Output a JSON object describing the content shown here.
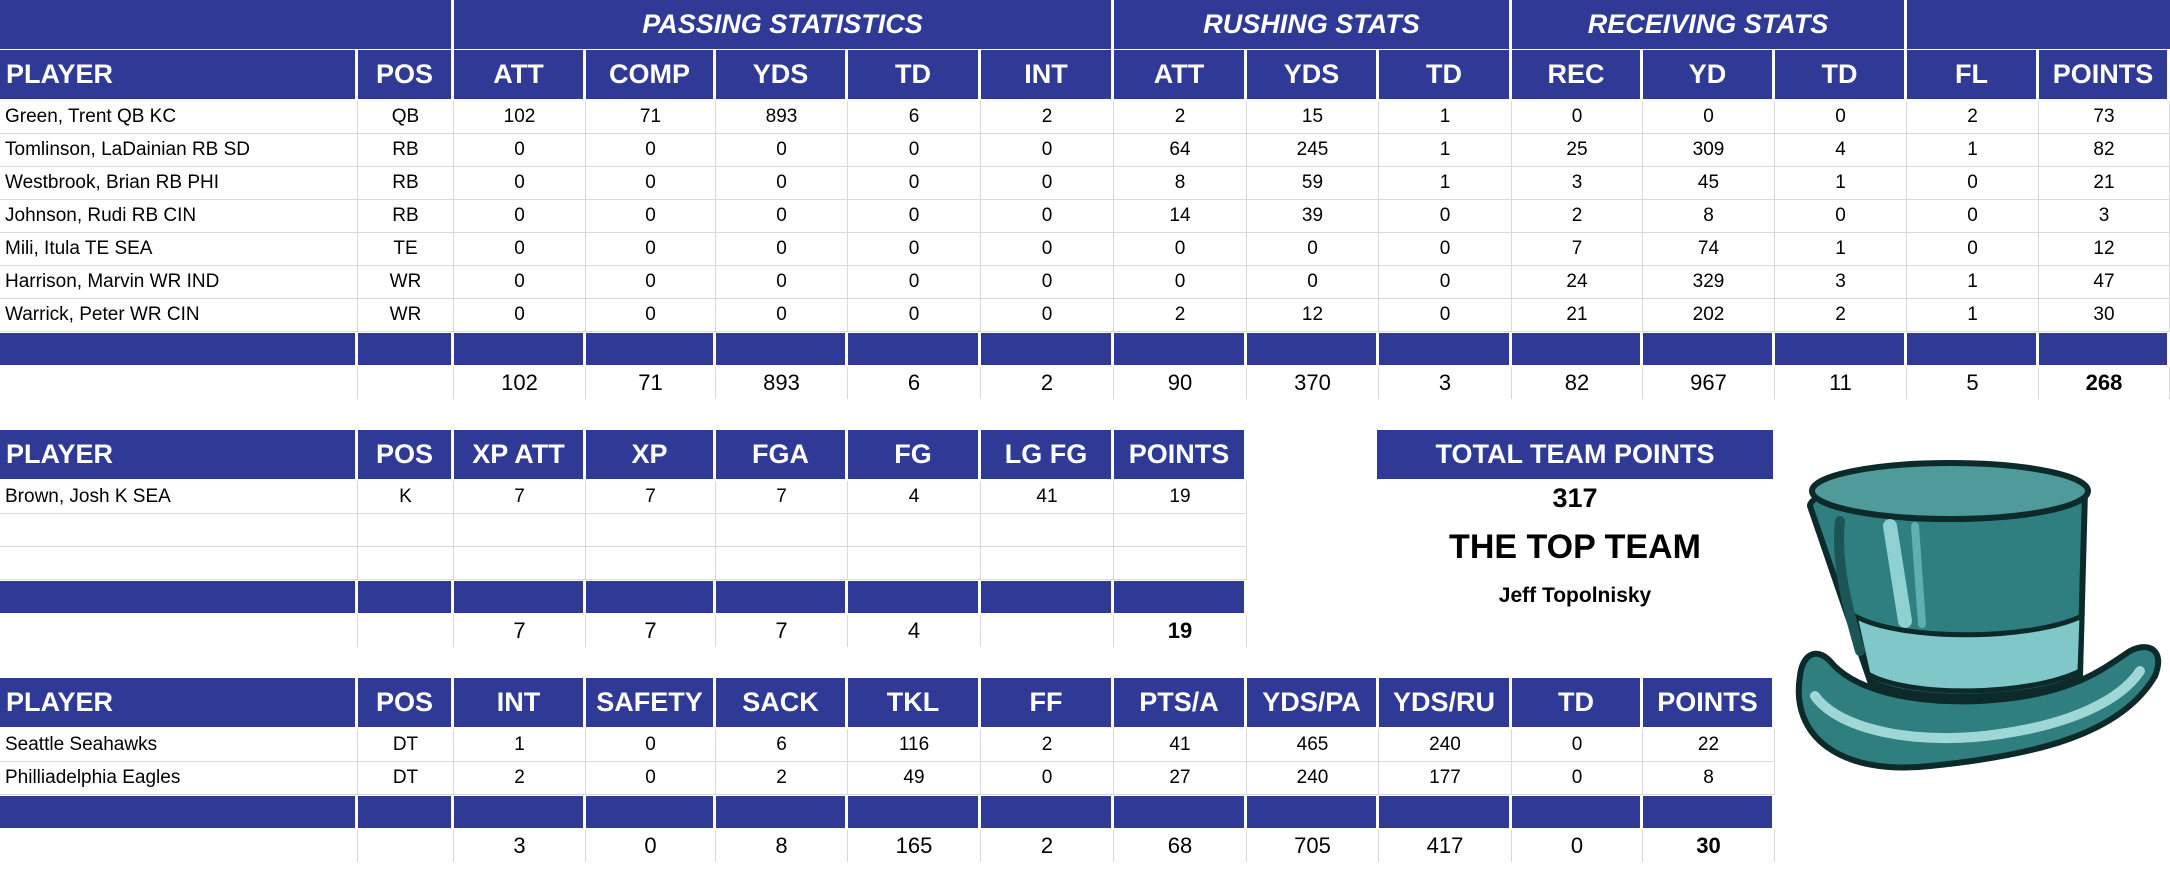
{
  "colors": {
    "header_bg": "#2e3a96",
    "header_text": "#ffffff",
    "hat_main": "#2f7f80",
    "hat_light": "#7fc7c8"
  },
  "offense": {
    "group_headers": [
      "PASSING STATISTICS",
      "RUSHING STATS",
      "RECEIVING STATS"
    ],
    "columns": [
      "PLAYER",
      "POS",
      "ATT",
      "COMP",
      "YDS",
      "TD",
      "INT",
      "ATT",
      "YDS",
      "TD",
      "REC",
      "YD",
      "TD",
      "FL",
      "POINTS"
    ],
    "rows": [
      [
        "Green, Trent QB KC",
        "QB",
        "102",
        "71",
        "893",
        "6",
        "2",
        "2",
        "15",
        "1",
        "0",
        "0",
        "0",
        "2",
        "73"
      ],
      [
        "Tomlinson, LaDainian RB SD",
        "RB",
        "0",
        "0",
        "0",
        "0",
        "0",
        "64",
        "245",
        "1",
        "25",
        "309",
        "4",
        "1",
        "82"
      ],
      [
        "Westbrook, Brian RB PHI",
        "RB",
        "0",
        "0",
        "0",
        "0",
        "0",
        "8",
        "59",
        "1",
        "3",
        "45",
        "1",
        "0",
        "21"
      ],
      [
        "Johnson, Rudi RB CIN",
        "RB",
        "0",
        "0",
        "0",
        "0",
        "0",
        "14",
        "39",
        "0",
        "2",
        "8",
        "0",
        "0",
        "3"
      ],
      [
        "Mili, Itula TE SEA",
        "TE",
        "0",
        "0",
        "0",
        "0",
        "0",
        "0",
        "0",
        "0",
        "7",
        "74",
        "1",
        "0",
        "12"
      ],
      [
        "Harrison, Marvin WR IND",
        "WR",
        "0",
        "0",
        "0",
        "0",
        "0",
        "0",
        "0",
        "0",
        "24",
        "329",
        "3",
        "1",
        "47"
      ],
      [
        "Warrick, Peter WR CIN",
        "WR",
        "0",
        "0",
        "0",
        "0",
        "0",
        "2",
        "12",
        "0",
        "21",
        "202",
        "2",
        "1",
        "30"
      ]
    ],
    "totals": [
      "",
      "",
      "102",
      "71",
      "893",
      "6",
      "2",
      "90",
      "370",
      "3",
      "82",
      "967",
      "11",
      "5",
      "268"
    ]
  },
  "kicker": {
    "columns": [
      "PLAYER",
      "POS",
      "XP ATT",
      "XP",
      "FGA",
      "FG",
      "LG FG",
      "POINTS"
    ],
    "rows": [
      [
        "Brown, Josh K SEA",
        "K",
        "7",
        "7",
        "7",
        "4",
        "41",
        "19"
      ],
      [
        "",
        "",
        "",
        "",
        "",
        "",
        "",
        ""
      ],
      [
        "",
        "",
        "",
        "",
        "",
        "",
        "",
        ""
      ]
    ],
    "totals": [
      "",
      "",
      "7",
      "7",
      "7",
      "4",
      "",
      "19"
    ]
  },
  "defense": {
    "columns": [
      "PLAYER",
      "POS",
      "INT",
      "SAFETY",
      "SACK",
      "TKL",
      "FF",
      "PTS/A",
      "YDS/PA",
      "YDS/RU",
      "TD",
      "POINTS"
    ],
    "rows": [
      [
        "Seattle Seahawks",
        "DT",
        "1",
        "0",
        "6",
        "116",
        "2",
        "41",
        "465",
        "240",
        "0",
        "22"
      ],
      [
        "Philliadelphia Eagles",
        "DT",
        "2",
        "0",
        "2",
        "49",
        "0",
        "27",
        "240",
        "177",
        "0",
        "8"
      ]
    ],
    "totals": [
      "",
      "",
      "3",
      "0",
      "8",
      "165",
      "2",
      "68",
      "705",
      "417",
      "0",
      "30"
    ]
  },
  "team": {
    "total_label": "TOTAL TEAM POINTS",
    "total_value": "317",
    "team_name": "THE TOP TEAM",
    "owner": "Jeff Topolnisky"
  },
  "logo": {
    "icon": "top-hat-icon"
  }
}
